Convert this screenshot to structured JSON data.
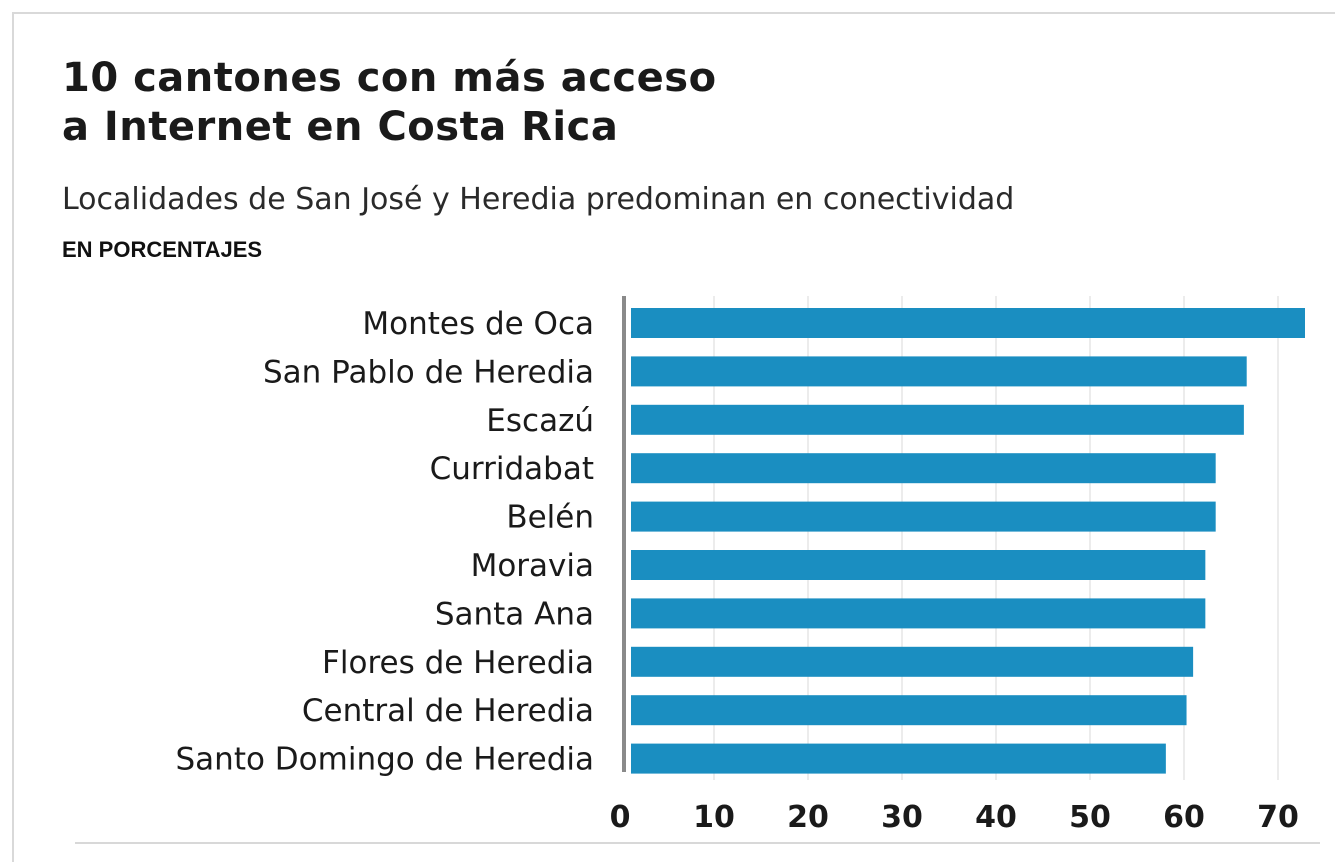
{
  "header": {
    "title_line1": "10 cantones con más acceso",
    "title_line2": "a Internet en Costa Rica",
    "subtitle": "Localidades de San José y Heredia predominan en conectividad",
    "units": "EN PORCENTAJES"
  },
  "colors": {
    "bar": "#1a8ec1",
    "axis": "#8a8a8a",
    "grid": "#d8d8d8"
  },
  "chart_data": {
    "type": "bar",
    "orientation": "horizontal",
    "title": "10 cantones con más acceso a Internet en Costa Rica",
    "subtitle": "Localidades de San José y Heredia predominan en conectividad",
    "unit": "EN PORCENTAJES",
    "categories": [
      "Montes de Oca",
      "San Pablo de Heredia",
      "Escazú",
      "Curridabat",
      "Belén",
      "Moravia",
      "Santa Ana",
      "Flores de Heredia",
      "Central de Heredia",
      "Santo Domingo de Heredia"
    ],
    "values": [
      72.3,
      65.5,
      65.2,
      62.2,
      62.2,
      61.1,
      61.1,
      59.8,
      59.1,
      56.9
    ],
    "xlim": [
      0,
      70
    ],
    "ticks": [
      "0",
      "10",
      "20",
      "30",
      "40",
      "50",
      "60",
      "70"
    ],
    "grid": true,
    "legend": "none"
  }
}
